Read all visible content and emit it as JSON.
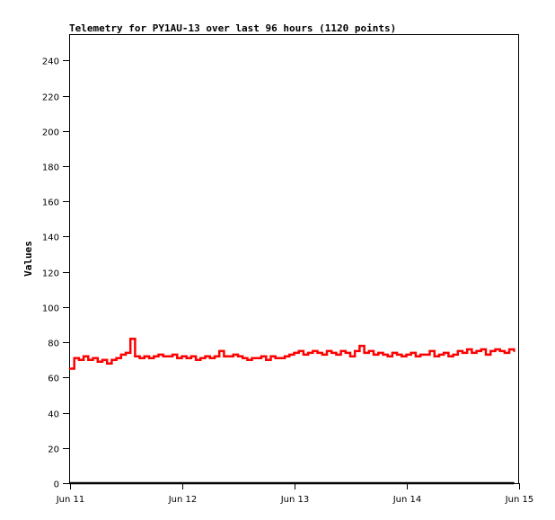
{
  "chart_data": {
    "type": "line",
    "title": "Telemetry for PY1AU-13 over last 96 hours (1120 points)",
    "xlabel": "",
    "ylabel": "Values",
    "ylim": [
      0,
      255
    ],
    "yticks": [
      "0",
      "20",
      "40",
      "60",
      "80",
      "100",
      "120",
      "140",
      "160",
      "180",
      "200",
      "220",
      "240"
    ],
    "xticks": [
      "Jun 11",
      "Jun 12",
      "Jun 13",
      "Jun 14",
      "Jun 15"
    ],
    "xlim": [
      "Jun 11 00:00",
      "Jun 15 00:00"
    ],
    "grid": false,
    "series": [
      {
        "color": "#ff0000",
        "x": [
          "Jun 11 00:00",
          "Jun 11 01:00",
          "Jun 11 02:00",
          "Jun 11 03:00",
          "Jun 11 04:00",
          "Jun 11 05:00",
          "Jun 11 06:00",
          "Jun 11 07:00",
          "Jun 11 08:00",
          "Jun 11 09:00",
          "Jun 11 10:00",
          "Jun 11 11:00",
          "Jun 11 12:00",
          "Jun 11 13:00",
          "Jun 11 14:00",
          "Jun 11 15:00",
          "Jun 11 16:00",
          "Jun 11 17:00",
          "Jun 11 18:00",
          "Jun 11 19:00",
          "Jun 11 20:00",
          "Jun 11 21:00",
          "Jun 11 22:00",
          "Jun 11 23:00",
          "Jun 12 00:00",
          "Jun 12 01:00",
          "Jun 12 02:00",
          "Jun 12 03:00",
          "Jun 12 04:00",
          "Jun 12 05:00",
          "Jun 12 06:00",
          "Jun 12 07:00",
          "Jun 12 08:00",
          "Jun 12 09:00",
          "Jun 12 10:00",
          "Jun 12 11:00",
          "Jun 12 12:00",
          "Jun 12 13:00",
          "Jun 12 14:00",
          "Jun 12 15:00",
          "Jun 12 16:00",
          "Jun 12 17:00",
          "Jun 12 18:00",
          "Jun 12 19:00",
          "Jun 12 20:00",
          "Jun 12 21:00",
          "Jun 12 22:00",
          "Jun 12 23:00",
          "Jun 13 00:00",
          "Jun 13 01:00",
          "Jun 13 02:00",
          "Jun 13 03:00",
          "Jun 13 04:00",
          "Jun 13 05:00",
          "Jun 13 06:00",
          "Jun 13 07:00",
          "Jun 13 08:00",
          "Jun 13 09:00",
          "Jun 13 10:00",
          "Jun 13 11:00",
          "Jun 13 12:00",
          "Jun 13 13:00",
          "Jun 13 14:00",
          "Jun 13 15:00",
          "Jun 13 16:00",
          "Jun 13 17:00",
          "Jun 13 18:00",
          "Jun 13 19:00",
          "Jun 13 20:00",
          "Jun 13 21:00",
          "Jun 13 22:00",
          "Jun 13 23:00",
          "Jun 14 00:00",
          "Jun 14 01:00",
          "Jun 14 02:00",
          "Jun 14 03:00",
          "Jun 14 04:00",
          "Jun 14 05:00",
          "Jun 14 06:00",
          "Jun 14 07:00",
          "Jun 14 08:00",
          "Jun 14 09:00",
          "Jun 14 10:00",
          "Jun 14 11:00",
          "Jun 14 12:00",
          "Jun 14 13:00",
          "Jun 14 14:00",
          "Jun 14 15:00",
          "Jun 14 16:00",
          "Jun 14 17:00",
          "Jun 14 18:00",
          "Jun 14 19:00",
          "Jun 14 20:00",
          "Jun 14 21:00",
          "Jun 14 22:00",
          "Jun 14 23:00"
        ],
        "values": [
          65,
          71,
          70,
          72,
          70,
          71,
          69,
          70,
          68,
          70,
          71,
          73,
          74,
          82,
          72,
          71,
          72,
          71,
          72,
          73,
          72,
          72,
          73,
          71,
          72,
          71,
          72,
          70,
          71,
          72,
          71,
          72,
          75,
          72,
          72,
          73,
          72,
          71,
          70,
          71,
          71,
          72,
          70,
          72,
          71,
          71,
          72,
          73,
          74,
          75,
          73,
          74,
          75,
          74,
          73,
          75,
          74,
          73,
          75,
          74,
          72,
          75,
          78,
          74,
          75,
          73,
          74,
          73,
          72,
          74,
          73,
          72,
          73,
          74,
          72,
          73,
          73,
          75,
          72,
          73,
          74,
          72,
          73,
          75,
          74,
          76,
          74,
          75,
          76,
          73,
          75,
          76,
          75,
          74,
          76,
          75
        ]
      },
      {
        "color": "#000000",
        "x": [
          "Jun 11 00:00",
          "Jun 14 23:00"
        ],
        "values": [
          0,
          0
        ]
      }
    ]
  }
}
